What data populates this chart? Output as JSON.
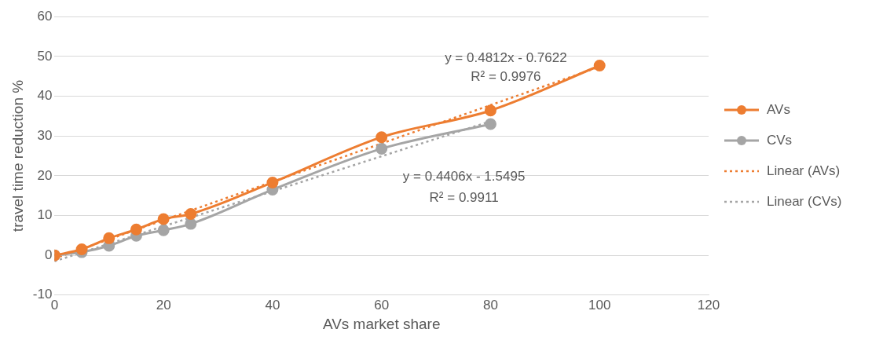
{
  "chart_data": {
    "type": "line",
    "xlabel": "AVs market share",
    "ylabel": "travel time reduction %",
    "xlim": [
      0,
      120
    ],
    "xticks": [
      0,
      20,
      40,
      60,
      80,
      100,
      120
    ],
    "ylim": [
      -10,
      60
    ],
    "yticks": [
      -10,
      0,
      10,
      20,
      30,
      40,
      50,
      60
    ],
    "grid": "y",
    "legend": "right",
    "marker": "circle",
    "line_style": "solid",
    "series": [
      {
        "name": "AVs",
        "color": "#ed7d31",
        "x": [
          0,
          5,
          10,
          15,
          20,
          25,
          40,
          60,
          80,
          100
        ],
        "values": [
          0,
          1.5,
          4.3,
          6.5,
          9.1,
          10.4,
          18.3,
          29.7,
          36.4,
          47.7
        ]
      },
      {
        "name": "CVs",
        "color": "#a5a5a5",
        "x": [
          0,
          5,
          10,
          15,
          20,
          25,
          40,
          60,
          80
        ],
        "values": [
          0,
          0.8,
          2.4,
          4.9,
          6.3,
          7.9,
          16.5,
          26.8,
          33.0
        ]
      },
      {
        "name": "Linear (AVs)",
        "type": "line",
        "marker": "none",
        "line_style": "dotted",
        "color": "#ed7d31",
        "x": [
          0,
          100
        ],
        "values": [
          -0.8,
          47.4
        ]
      },
      {
        "name": "Linear (CVs)",
        "type": "line",
        "marker": "none",
        "line_style": "dotted",
        "color": "#a5a5a5",
        "x": [
          0,
          80
        ],
        "values": [
          -1.5,
          33.7
        ]
      }
    ],
    "annotations": [
      "y = 0.4812x - 0.7622",
      "R² = 0.9976",
      "y = 0.4406x - 1.5495",
      "R² = 0.9911"
    ]
  }
}
